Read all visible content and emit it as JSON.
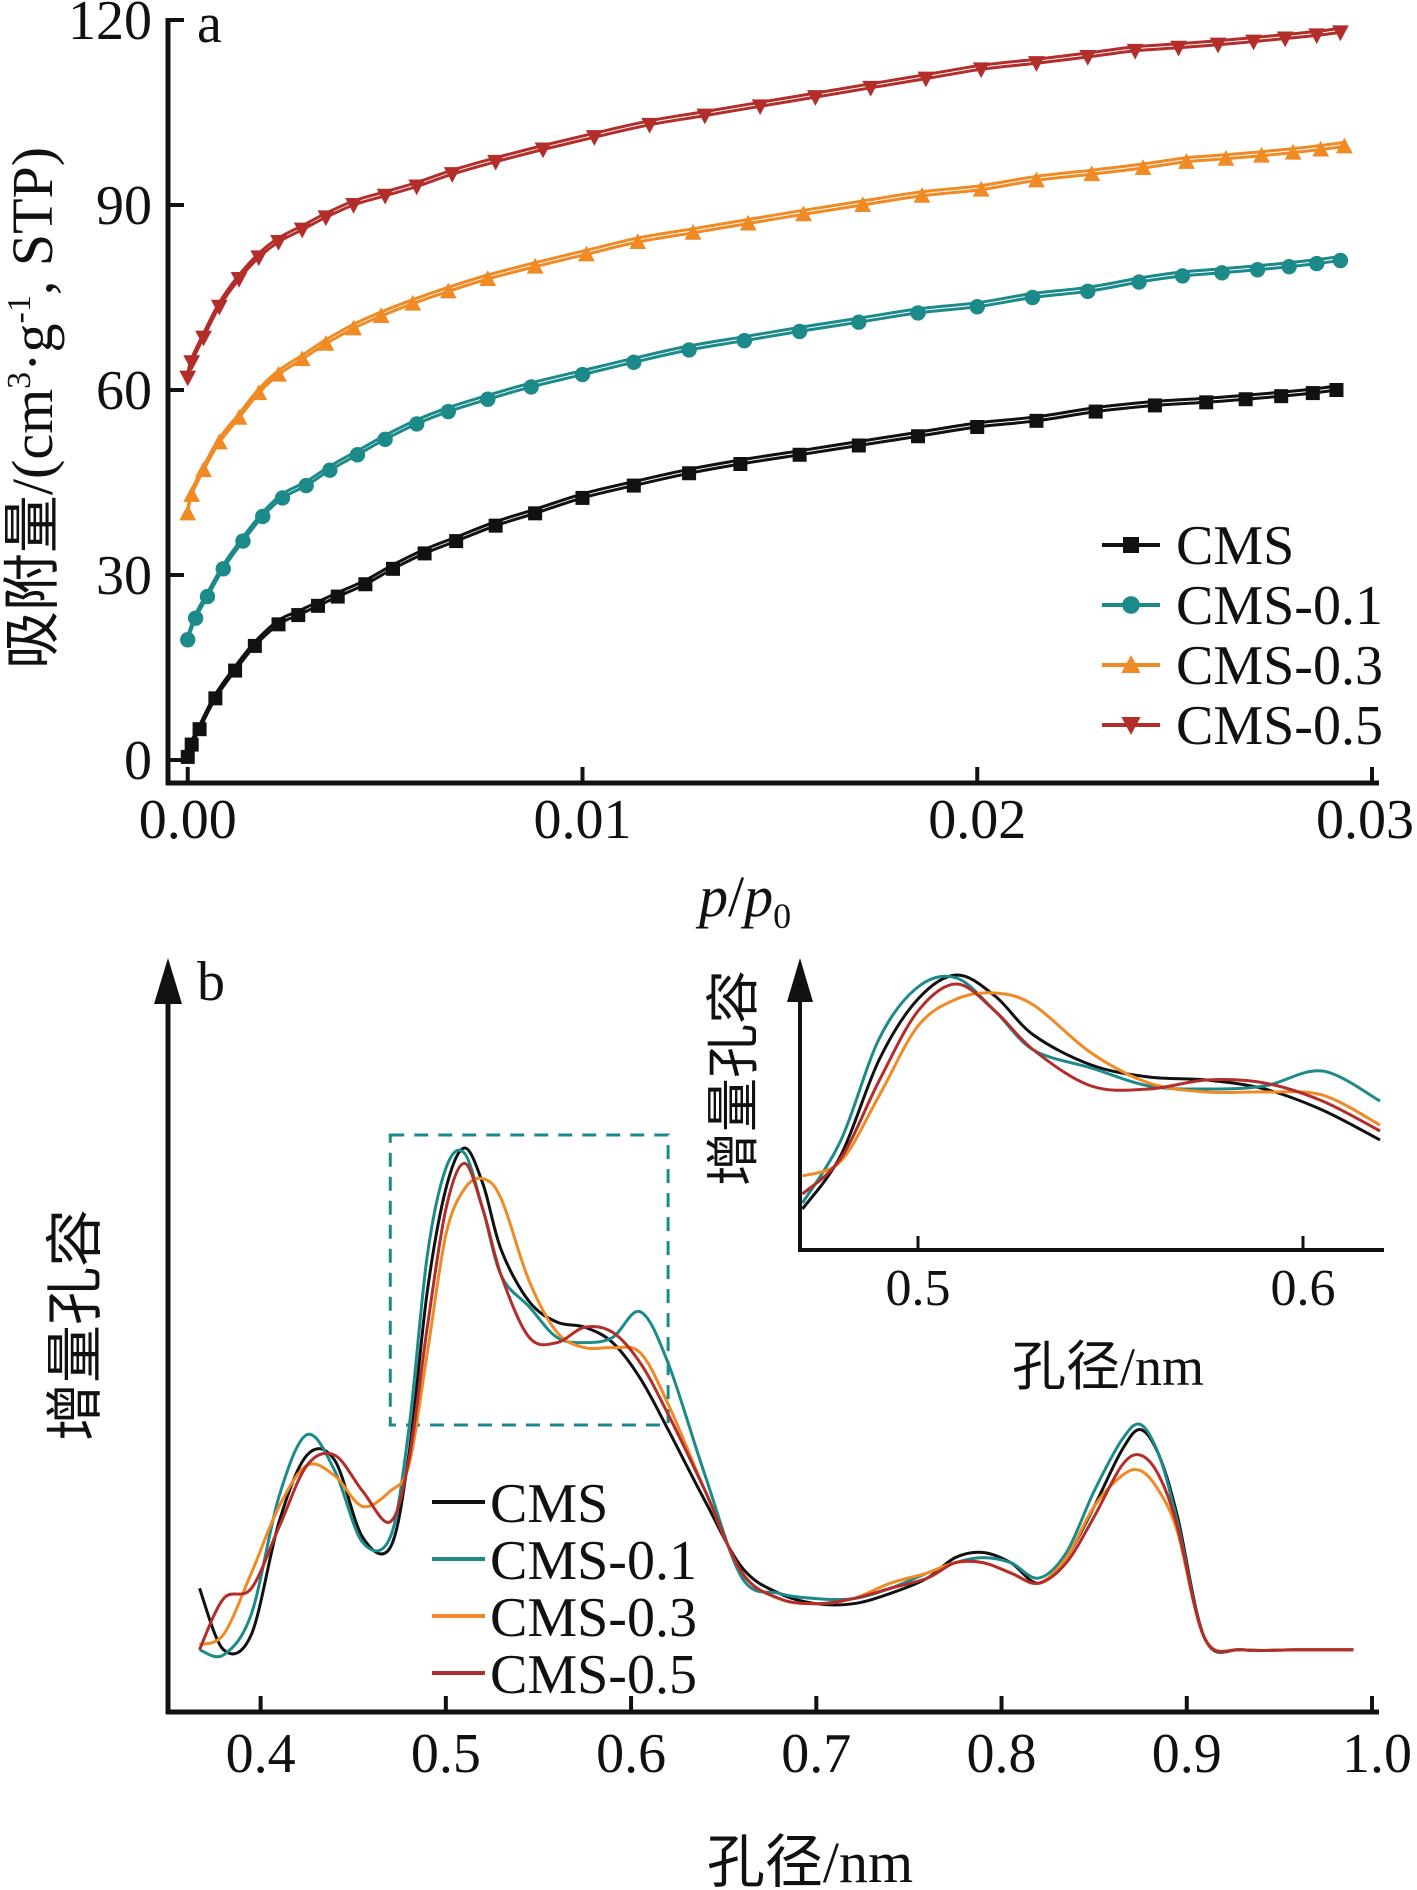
{
  "chart_data": [
    {
      "panel": "a",
      "type": "line",
      "xlabel": "p/p0",
      "xlabel_parts": {
        "italic1": "p",
        "slash": "/",
        "italic2": "p",
        "sub": "0"
      },
      "ylabel": "吸附量/(cm3·g-1, STP)",
      "ylabel_parts": {
        "pre": "吸附量/(cm",
        "sup1": "3",
        "mid": "·g",
        "sup2": "-1",
        "post": ", STP)"
      },
      "xlim": [
        -0.0005,
        0.03
      ],
      "ylim": [
        0,
        120
      ],
      "xticks": [
        "0.00",
        "0.01",
        "0.02",
        "0.03"
      ],
      "xtick_values": [
        0,
        0.01,
        0.02,
        0.03
      ],
      "yticks": [
        "0",
        "30",
        "60",
        "90",
        "120"
      ],
      "ytick_values": [
        0,
        30,
        60,
        90,
        120
      ],
      "legend_position": "bottom-right",
      "series": [
        {
          "name": "CMS",
          "marker": "square",
          "color": "#111111",
          "x": [
            0.0,
            0.0001,
            0.0003,
            0.0007,
            0.0012,
            0.0017,
            0.0023,
            0.0028,
            0.0033,
            0.0038,
            0.0045,
            0.0052,
            0.006,
            0.0068,
            0.0078,
            0.0088,
            0.01,
            0.0113,
            0.0127,
            0.014,
            0.0155,
            0.017,
            0.0185,
            0.02,
            0.0215,
            0.023,
            0.0245,
            0.0258,
            0.0268,
            0.0277,
            0.0285,
            0.0291
          ],
          "y": [
            0.5,
            2.5,
            5.0,
            10.0,
            14.5,
            18.5,
            22.0,
            23.5,
            25.0,
            26.5,
            28.5,
            31.0,
            33.5,
            35.5,
            38.0,
            40.0,
            42.5,
            44.5,
            46.5,
            48.0,
            49.5,
            51.0,
            52.5,
            54.0,
            55.0,
            56.5,
            57.5,
            58.0,
            58.5,
            59.0,
            59.5,
            60.0
          ]
        },
        {
          "name": "CMS-0.1",
          "marker": "circle",
          "color": "#1d8a8a",
          "x": [
            0.0,
            0.0002,
            0.0005,
            0.0009,
            0.0014,
            0.0019,
            0.0024,
            0.003,
            0.0036,
            0.0043,
            0.005,
            0.0058,
            0.0066,
            0.0076,
            0.0087,
            0.01,
            0.0113,
            0.0127,
            0.0141,
            0.0155,
            0.017,
            0.0185,
            0.02,
            0.0214,
            0.0228,
            0.0241,
            0.0252,
            0.0262,
            0.0271,
            0.0279,
            0.0286,
            0.0292
          ],
          "y": [
            19.5,
            23.0,
            26.5,
            31.0,
            35.5,
            39.5,
            42.5,
            44.5,
            47.0,
            49.5,
            52.0,
            54.5,
            56.5,
            58.5,
            60.5,
            62.5,
            64.5,
            66.5,
            68.0,
            69.5,
            71.0,
            72.5,
            73.5,
            75.0,
            76.0,
            77.5,
            78.5,
            79.0,
            79.5,
            80.0,
            80.5,
            81.0
          ]
        },
        {
          "name": "CMS-0.3",
          "marker": "triangle-up",
          "color": "#f08a24",
          "x": [
            0.0,
            0.0001,
            0.0004,
            0.0008,
            0.0013,
            0.0018,
            0.0023,
            0.0029,
            0.0035,
            0.0042,
            0.0049,
            0.0057,
            0.0066,
            0.0076,
            0.0088,
            0.0101,
            0.0114,
            0.0128,
            0.0142,
            0.0156,
            0.0171,
            0.0186,
            0.0201,
            0.0215,
            0.0229,
            0.0242,
            0.0253,
            0.0263,
            0.0272,
            0.028,
            0.0287,
            0.0293
          ],
          "y": [
            40.0,
            43.0,
            47.0,
            51.5,
            55.5,
            59.5,
            62.5,
            65.0,
            67.5,
            70.0,
            72.0,
            74.0,
            76.0,
            78.0,
            80.0,
            82.0,
            84.0,
            85.5,
            87.0,
            88.5,
            90.0,
            91.5,
            92.5,
            94.0,
            95.0,
            96.0,
            97.0,
            97.5,
            98.0,
            98.5,
            99.0,
            99.5
          ]
        },
        {
          "name": "CMS-0.5",
          "marker": "triangle-down",
          "color": "#b32d2a",
          "x": [
            0.0,
            0.0001,
            0.0004,
            0.0008,
            0.0013,
            0.0018,
            0.0023,
            0.0029,
            0.0035,
            0.0042,
            0.005,
            0.0058,
            0.0067,
            0.0078,
            0.009,
            0.0103,
            0.0117,
            0.0131,
            0.0145,
            0.0159,
            0.0173,
            0.0187,
            0.0201,
            0.0215,
            0.0228,
            0.024,
            0.0251,
            0.0261,
            0.027,
            0.0278,
            0.0286,
            0.0292
          ],
          "y": [
            62.0,
            64.5,
            68.5,
            73.5,
            78.0,
            81.5,
            84.0,
            86.0,
            88.0,
            90.0,
            91.5,
            93.0,
            95.0,
            97.0,
            99.0,
            101.0,
            103.0,
            104.5,
            106.0,
            107.5,
            109.0,
            110.5,
            112.0,
            113.0,
            114.0,
            115.0,
            115.5,
            116.0,
            116.5,
            117.0,
            117.5,
            118.0
          ]
        }
      ]
    },
    {
      "panel": "b",
      "type": "line",
      "xlabel": "孔径/nm",
      "ylabel": "增量孔容",
      "xlim": [
        0.35,
        1.0
      ],
      "xticks": [
        "0.4",
        "0.5",
        "0.6",
        "0.7",
        "0.8",
        "0.9",
        "1.0"
      ],
      "xtick_values": [
        0.4,
        0.5,
        0.6,
        0.7,
        0.8,
        0.9,
        1.0
      ],
      "legend_position": "bottom-left",
      "y_units": "arbitrary",
      "x": [
        0.367,
        0.38,
        0.395,
        0.41,
        0.425,
        0.44,
        0.455,
        0.47,
        0.48,
        0.49,
        0.5,
        0.51,
        0.52,
        0.53,
        0.545,
        0.56,
        0.575,
        0.59,
        0.605,
        0.62,
        0.64,
        0.66,
        0.68,
        0.7,
        0.72,
        0.74,
        0.76,
        0.775,
        0.79,
        0.805,
        0.82,
        0.835,
        0.85,
        0.865,
        0.875,
        0.885,
        0.895,
        0.91,
        0.93,
        0.96,
        0.99
      ],
      "series": [
        {
          "name": "CMS",
          "color": "#111111",
          "y": [
            0.14,
            0.02,
            0.05,
            0.27,
            0.4,
            0.39,
            0.24,
            0.22,
            0.4,
            0.72,
            0.92,
            1.0,
            0.93,
            0.8,
            0.7,
            0.66,
            0.65,
            0.62,
            0.55,
            0.45,
            0.31,
            0.18,
            0.13,
            0.11,
            0.11,
            0.13,
            0.16,
            0.2,
            0.21,
            0.19,
            0.15,
            0.2,
            0.3,
            0.41,
            0.45,
            0.4,
            0.28,
            0.04,
            0.02,
            0.02,
            0.02
          ]
        },
        {
          "name": "CMS-0.1",
          "color": "#1d8a8a",
          "y": [
            0.02,
            0.01,
            0.09,
            0.32,
            0.44,
            0.37,
            0.23,
            0.24,
            0.45,
            0.79,
            0.96,
            0.99,
            0.88,
            0.75,
            0.69,
            0.63,
            0.62,
            0.63,
            0.68,
            0.58,
            0.36,
            0.16,
            0.13,
            0.12,
            0.12,
            0.14,
            0.17,
            0.19,
            0.2,
            0.19,
            0.16,
            0.21,
            0.33,
            0.43,
            0.46,
            0.4,
            0.27,
            0.04,
            0.02,
            0.02,
            0.02
          ]
        },
        {
          "name": "CMS-0.3",
          "color": "#f08a24",
          "y": [
            0.03,
            0.05,
            0.17,
            0.3,
            0.38,
            0.36,
            0.3,
            0.33,
            0.38,
            0.6,
            0.83,
            0.92,
            0.94,
            0.9,
            0.74,
            0.64,
            0.61,
            0.61,
            0.6,
            0.5,
            0.33,
            0.17,
            0.12,
            0.11,
            0.12,
            0.15,
            0.17,
            0.19,
            0.19,
            0.17,
            0.15,
            0.2,
            0.3,
            0.36,
            0.37,
            0.33,
            0.25,
            0.04,
            0.02,
            0.02,
            0.02
          ]
        },
        {
          "name": "CMS-0.5",
          "color": "#b32d2a",
          "y": [
            0.02,
            0.12,
            0.14,
            0.26,
            0.38,
            0.4,
            0.33,
            0.27,
            0.39,
            0.65,
            0.88,
            0.97,
            0.88,
            0.75,
            0.63,
            0.62,
            0.65,
            0.64,
            0.58,
            0.48,
            0.33,
            0.17,
            0.12,
            0.11,
            0.12,
            0.14,
            0.16,
            0.19,
            0.19,
            0.17,
            0.15,
            0.19,
            0.28,
            0.38,
            0.4,
            0.36,
            0.26,
            0.04,
            0.02,
            0.02,
            0.02
          ]
        }
      ],
      "zoom_box_xrange": [
        0.47,
        0.62
      ],
      "inset": {
        "type": "line",
        "xlabel": "孔径/nm",
        "ylabel": "增量孔容",
        "xlim": [
          0.47,
          0.62
        ],
        "xticks": [
          "0.5",
          "0.6"
        ],
        "xtick_values": [
          0.5,
          0.6
        ],
        "y_units": "arbitrary"
      }
    }
  ]
}
